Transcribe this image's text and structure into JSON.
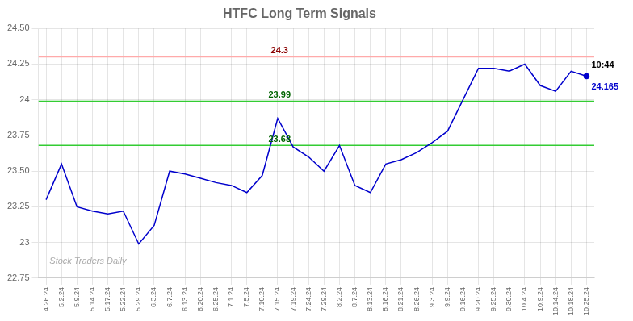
{
  "chart_data": {
    "type": "line",
    "title": "HTFC Long Term Signals",
    "categories": [
      "4.26.24",
      "5.2.24",
      "5.9.24",
      "5.14.24",
      "5.17.24",
      "5.22.24",
      "5.29.24",
      "6.3.24",
      "6.7.24",
      "6.13.24",
      "6.20.24",
      "6.25.24",
      "7.1.24",
      "7.5.24",
      "7.10.24",
      "7.15.24",
      "7.19.24",
      "7.24.24",
      "7.29.24",
      "8.2.24",
      "8.7.24",
      "8.13.24",
      "8.16.24",
      "8.21.24",
      "8.26.24",
      "9.3.24",
      "9.9.24",
      "9.16.24",
      "9.20.24",
      "9.25.24",
      "9.30.24",
      "10.4.24",
      "10.9.24",
      "10.14.24",
      "10.18.24",
      "10.25.24"
    ],
    "values": [
      23.3,
      23.55,
      23.25,
      23.22,
      23.2,
      23.22,
      22.99,
      23.12,
      23.5,
      23.48,
      23.45,
      23.42,
      23.4,
      23.35,
      23.47,
      23.87,
      23.67,
      23.6,
      23.5,
      23.68,
      23.4,
      23.35,
      23.55,
      23.58,
      23.63,
      23.7,
      23.78,
      24.0,
      24.22,
      24.22,
      24.2,
      24.25,
      24.1,
      24.06,
      24.2,
      24.165
    ],
    "color": "#0000cc",
    "ylim": [
      22.75,
      24.5
    ],
    "yticks": [
      22.75,
      23,
      23.25,
      {
        "value": 23.5,
        "label": "23.50"
      },
      23.75,
      24,
      24.25,
      {
        "value": 24.5,
        "label": "24.50"
      }
    ],
    "grid": true,
    "hlines": [
      {
        "value": 24.3,
        "label": "24.3",
        "color": "#ffaaaa",
        "label_color": "darkred"
      },
      {
        "value": 23.99,
        "label": "23.99",
        "color": "#33cc33",
        "label_color": "darkgreen"
      },
      {
        "value": 23.68,
        "label": "23.68",
        "color": "#33cc33",
        "label_color": "darkgreen"
      }
    ],
    "last_point_annotations": [
      {
        "text": "10:44",
        "color": "black",
        "position": "above"
      },
      {
        "text": "24.165",
        "color": "#0000cc",
        "position": "below"
      }
    ],
    "watermark": "Stock Traders Daily"
  }
}
